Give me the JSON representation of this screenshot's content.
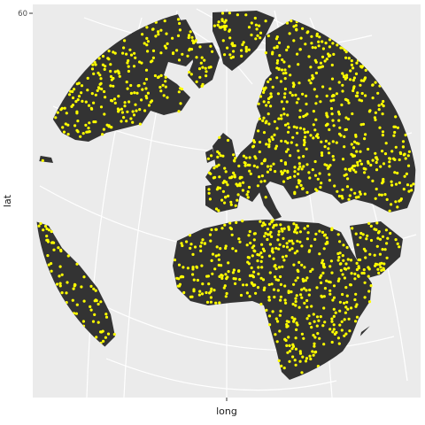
{
  "chart_data": {
    "type": "scatter",
    "projection": "orthographic",
    "xlabel": "long",
    "ylabel": "lat",
    "y_tick_labels": [
      "60"
    ],
    "grid": true,
    "legend": "none",
    "colors": {
      "panel_background": "#ebebeb",
      "land": "#333333",
      "graticule": "#ffffff",
      "points": "#ffff00"
    },
    "points_description_count_estimate": 1500
  }
}
